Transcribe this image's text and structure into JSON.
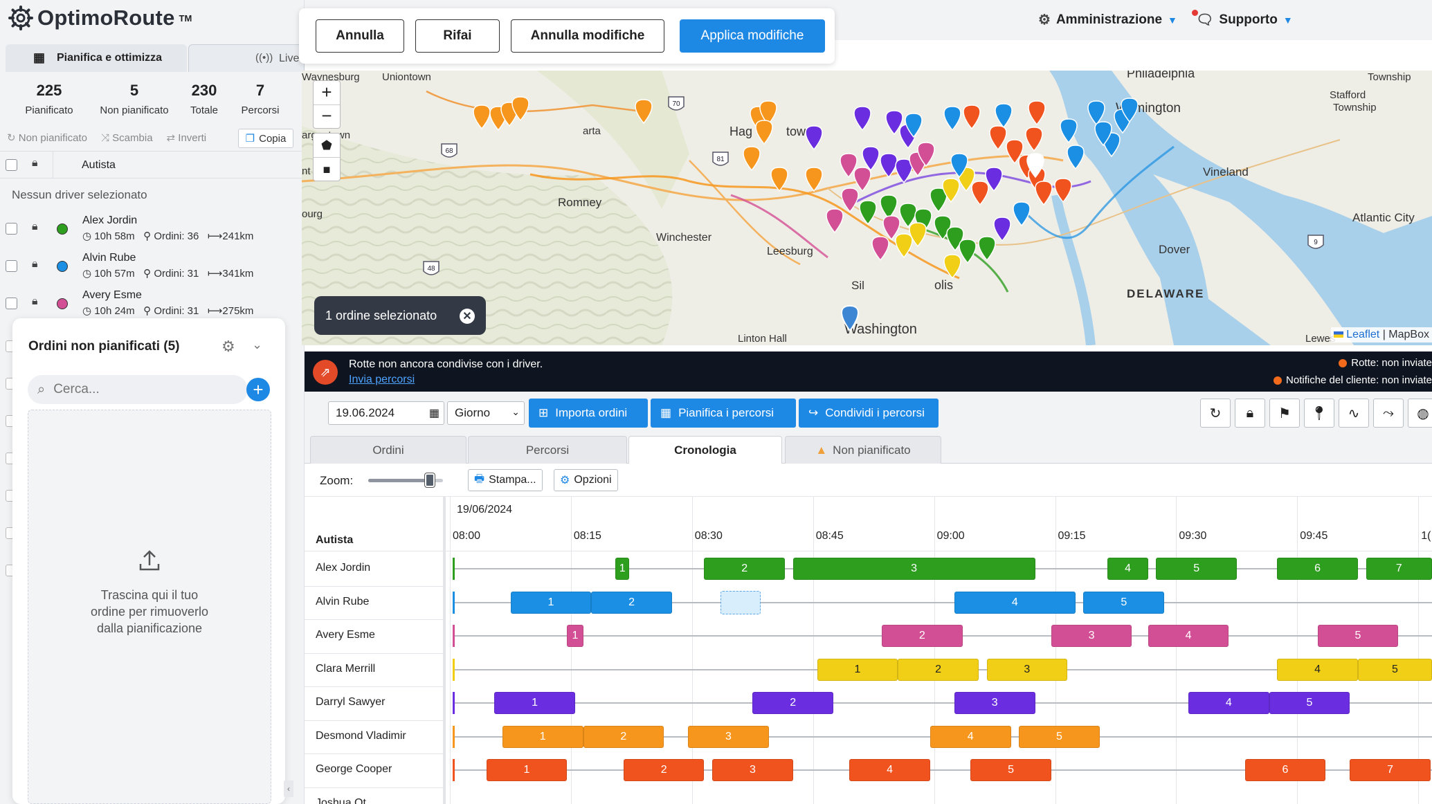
{
  "app": {
    "brand": "OptimoRoute",
    "tm": "TM"
  },
  "left_tabs": {
    "plan": "Pianifica e ottimizza",
    "live": "Live"
  },
  "stats": [
    {
      "value": "225",
      "label": "Pianificato"
    },
    {
      "value": "5",
      "label": "Non pianificato"
    },
    {
      "value": "230",
      "label": "Totale"
    },
    {
      "value": "7",
      "label": "Percorsi"
    }
  ],
  "tools": {
    "unplan": "Non pianificato",
    "swap": "Scambia",
    "invert": "Inverti",
    "copy": "Copia"
  },
  "driver_list": {
    "header": "Autista",
    "no_driver": "Nessun driver selezionato",
    "drivers": [
      {
        "name": "Alex Jordin",
        "time": "10h 58m",
        "orders": "Ordini: 36",
        "dist": "241km",
        "color": "#2e9e1f"
      },
      {
        "name": "Alvin Rube",
        "time": "10h 57m",
        "orders": "Ordini: 31",
        "dist": "341km",
        "color": "#1a8fe3"
      },
      {
        "name": "Avery Esme",
        "time": "10h 24m",
        "orders": "Ordini: 31",
        "dist": "275km",
        "color": "#d34f95"
      }
    ]
  },
  "unplanned": {
    "title": "Ordini non pianificati (5)",
    "search_placeholder": "Cerca...",
    "drop_line1": "Trascina qui il tuo",
    "drop_line2": "ordine per rimuoverlo",
    "drop_line3": "dalla pianificazione"
  },
  "edit": {
    "cancel": "Annulla",
    "redo": "Rifai",
    "undo_changes": "Annulla modifiche",
    "apply": "Applica modifiche"
  },
  "topnav": {
    "admin": "Amministrazione",
    "support": "Supporto"
  },
  "map": {
    "selected": "1 ordine selezionato",
    "attribution_leaflet": "Leaflet",
    "attribution_rest": "| MapBox",
    "places": [
      {
        "name": "Waynesburg"
      },
      {
        "name": "Uniontown"
      },
      {
        "name": "Philadelphia"
      },
      {
        "name": "Township"
      },
      {
        "name": "Stafford"
      },
      {
        "name": "Township"
      },
      {
        "name": "Wilmington"
      },
      {
        "name": "argantown"
      },
      {
        "name": "Hag"
      },
      {
        "name": "town"
      },
      {
        "name": "Vineland"
      },
      {
        "name": "Romney"
      },
      {
        "name": "Atlantic City"
      },
      {
        "name": "Winchester"
      },
      {
        "name": "Dover"
      },
      {
        "name": "Leesburg"
      },
      {
        "name": "DELAWARE"
      },
      {
        "name": "Washington"
      },
      {
        "name": "Linton Hall"
      },
      {
        "name": "Lewes"
      },
      {
        "name": "Sil"
      },
      {
        "name": "olis"
      },
      {
        "name": "arta"
      },
      {
        "name": "ourg"
      },
      {
        "name": "nt"
      }
    ],
    "routes": [
      "68",
      "70",
      "81",
      "48",
      "9"
    ]
  },
  "notice": {
    "line1": "Rotte non ancora condivise con i driver.",
    "link": "Invia percorsi",
    "right1": "Rotte: non inviate",
    "right2": "Notifiche del cliente: non inviate"
  },
  "toolbar": {
    "date": "19.06.2024",
    "view": "Giorno",
    "import": "Importa ordini",
    "plan": "Pianifica i percorsi",
    "share": "Condividi i percorsi"
  },
  "tabs": [
    "Ordini",
    "Percorsi",
    "Cronologia",
    "Non pianificato"
  ],
  "timeline": {
    "zoom_label": "Zoom:",
    "zoom_level": 0.82,
    "print": "Stampa...",
    "options": "Opzioni",
    "date": "19/06/2024",
    "driver_col": "Autista",
    "times": [
      "08:00",
      "08:15",
      "08:30",
      "08:45",
      "09:00",
      "09:15",
      "09:30",
      "09:45",
      "1("
    ],
    "rows": [
      {
        "driver": "Alex Jordin",
        "color": "#2e9e1f",
        "blocks": [
          {
            "s": "08:20",
            "e": "08:21",
            "n": "1"
          },
          {
            "s": "08:31",
            "e": "08:41",
            "n": "2"
          },
          {
            "s": "08:42",
            "e": "09:12",
            "n": "3"
          },
          {
            "s": "09:21",
            "e": "09:26",
            "n": "4"
          },
          {
            "s": "09:27",
            "e": "09:37",
            "n": "5"
          },
          {
            "s": "09:42",
            "e": "09:52",
            "n": "6"
          },
          {
            "s": "09:53",
            "e": "10:03",
            "n": "7"
          }
        ]
      },
      {
        "driver": "Alvin Rube",
        "color": "#1a8fe3",
        "blocks": [
          {
            "s": "08:07",
            "e": "08:17",
            "n": "1"
          },
          {
            "s": "08:17",
            "e": "08:27",
            "n": "2"
          },
          {
            "s": "09:02",
            "e": "09:17",
            "n": "4"
          },
          {
            "s": "09:18",
            "e": "09:28",
            "n": "5"
          }
        ]
      },
      {
        "driver": "Avery Esme",
        "color": "#d34f95",
        "blocks": [
          {
            "s": "08:14",
            "e": "08:16",
            "n": "1"
          },
          {
            "s": "08:53",
            "e": "09:03",
            "n": "2"
          },
          {
            "s": "09:14",
            "e": "09:24",
            "n": "3"
          },
          {
            "s": "09:26",
            "e": "09:36",
            "n": "4"
          },
          {
            "s": "09:47",
            "e": "09:57",
            "n": "5"
          }
        ]
      },
      {
        "driver": "Clara Merrill",
        "color": "#f0cf16",
        "blocks": [
          {
            "s": "08:45",
            "e": "08:55",
            "n": "1"
          },
          {
            "s": "08:55",
            "e": "09:05",
            "n": "2"
          },
          {
            "s": "09:06",
            "e": "09:16",
            "n": "3"
          },
          {
            "s": "09:42",
            "e": "09:52",
            "n": "4"
          },
          {
            "s": "09:52",
            "e": "10:02",
            "n": "5"
          }
        ]
      },
      {
        "driver": "Darryl Sawyer",
        "color": "#6a2ee0",
        "blocks": [
          {
            "s": "08:05",
            "e": "08:15",
            "n": "1"
          },
          {
            "s": "08:37",
            "e": "08:47",
            "n": "2"
          },
          {
            "s": "09:02",
            "e": "09:12",
            "n": "3"
          },
          {
            "s": "09:31",
            "e": "09:41",
            "n": "4"
          },
          {
            "s": "09:41",
            "e": "09:51",
            "n": "5"
          }
        ]
      },
      {
        "driver": "Desmond Vladimir",
        "color": "#f7961d",
        "blocks": [
          {
            "s": "08:06",
            "e": "08:16",
            "n": "1"
          },
          {
            "s": "08:16",
            "e": "08:26",
            "n": "2"
          },
          {
            "s": "08:29",
            "e": "08:39",
            "n": "3"
          },
          {
            "s": "08:59",
            "e": "09:09",
            "n": "4"
          },
          {
            "s": "09:10",
            "e": "09:20",
            "n": "5"
          }
        ]
      },
      {
        "driver": "George Cooper",
        "color": "#f1531f",
        "blocks": [
          {
            "s": "08:04",
            "e": "08:14",
            "n": "1"
          },
          {
            "s": "08:21",
            "e": "08:31",
            "n": "2"
          },
          {
            "s": "08:32",
            "e": "08:42",
            "n": "3"
          },
          {
            "s": "08:49",
            "e": "08:59",
            "n": "4"
          },
          {
            "s": "09:04",
            "e": "09:14",
            "n": "5"
          },
          {
            "s": "09:38",
            "e": "09:48",
            "n": "6"
          },
          {
            "s": "09:51",
            "e": "10:01",
            "n": "7"
          }
        ]
      },
      {
        "driver": "Joshua Ot...",
        "color": "#888888",
        "blocks": []
      }
    ],
    "ghost": {
      "s": "08:33",
      "e": "08:38"
    }
  }
}
